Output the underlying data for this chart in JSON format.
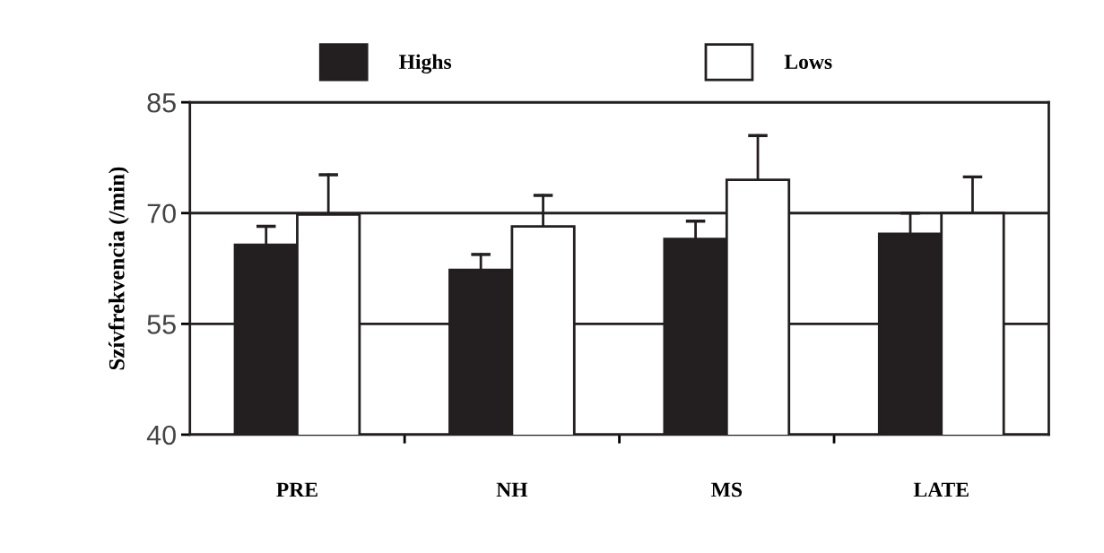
{
  "chart_data": {
    "type": "bar",
    "ylabel": "Szívfrekvencia (/min)",
    "categories": [
      "PRE",
      "NH",
      "MS",
      "LATE"
    ],
    "series": [
      {
        "name": "Highs",
        "color": "#231f20",
        "values": [
          65.7,
          62.3,
          66.5,
          67.2
        ],
        "errors": [
          [
            65.7,
            68.2
          ],
          [
            62.3,
            64.4
          ],
          [
            66.5,
            68.9
          ],
          [
            67.2,
            70.0
          ]
        ]
      },
      {
        "name": "Lows",
        "color": "#ffffff",
        "values": [
          69.8,
          68.2,
          74.5,
          70.0
        ],
        "errors": [
          [
            69.8,
            75.2
          ],
          [
            68.2,
            72.4
          ],
          [
            74.5,
            80.5
          ],
          [
            70.0,
            74.9
          ]
        ]
      }
    ],
    "ylim": [
      40,
      85
    ],
    "yticks": [
      40,
      55,
      70,
      85
    ],
    "grid": "y",
    "legend": "top"
  }
}
